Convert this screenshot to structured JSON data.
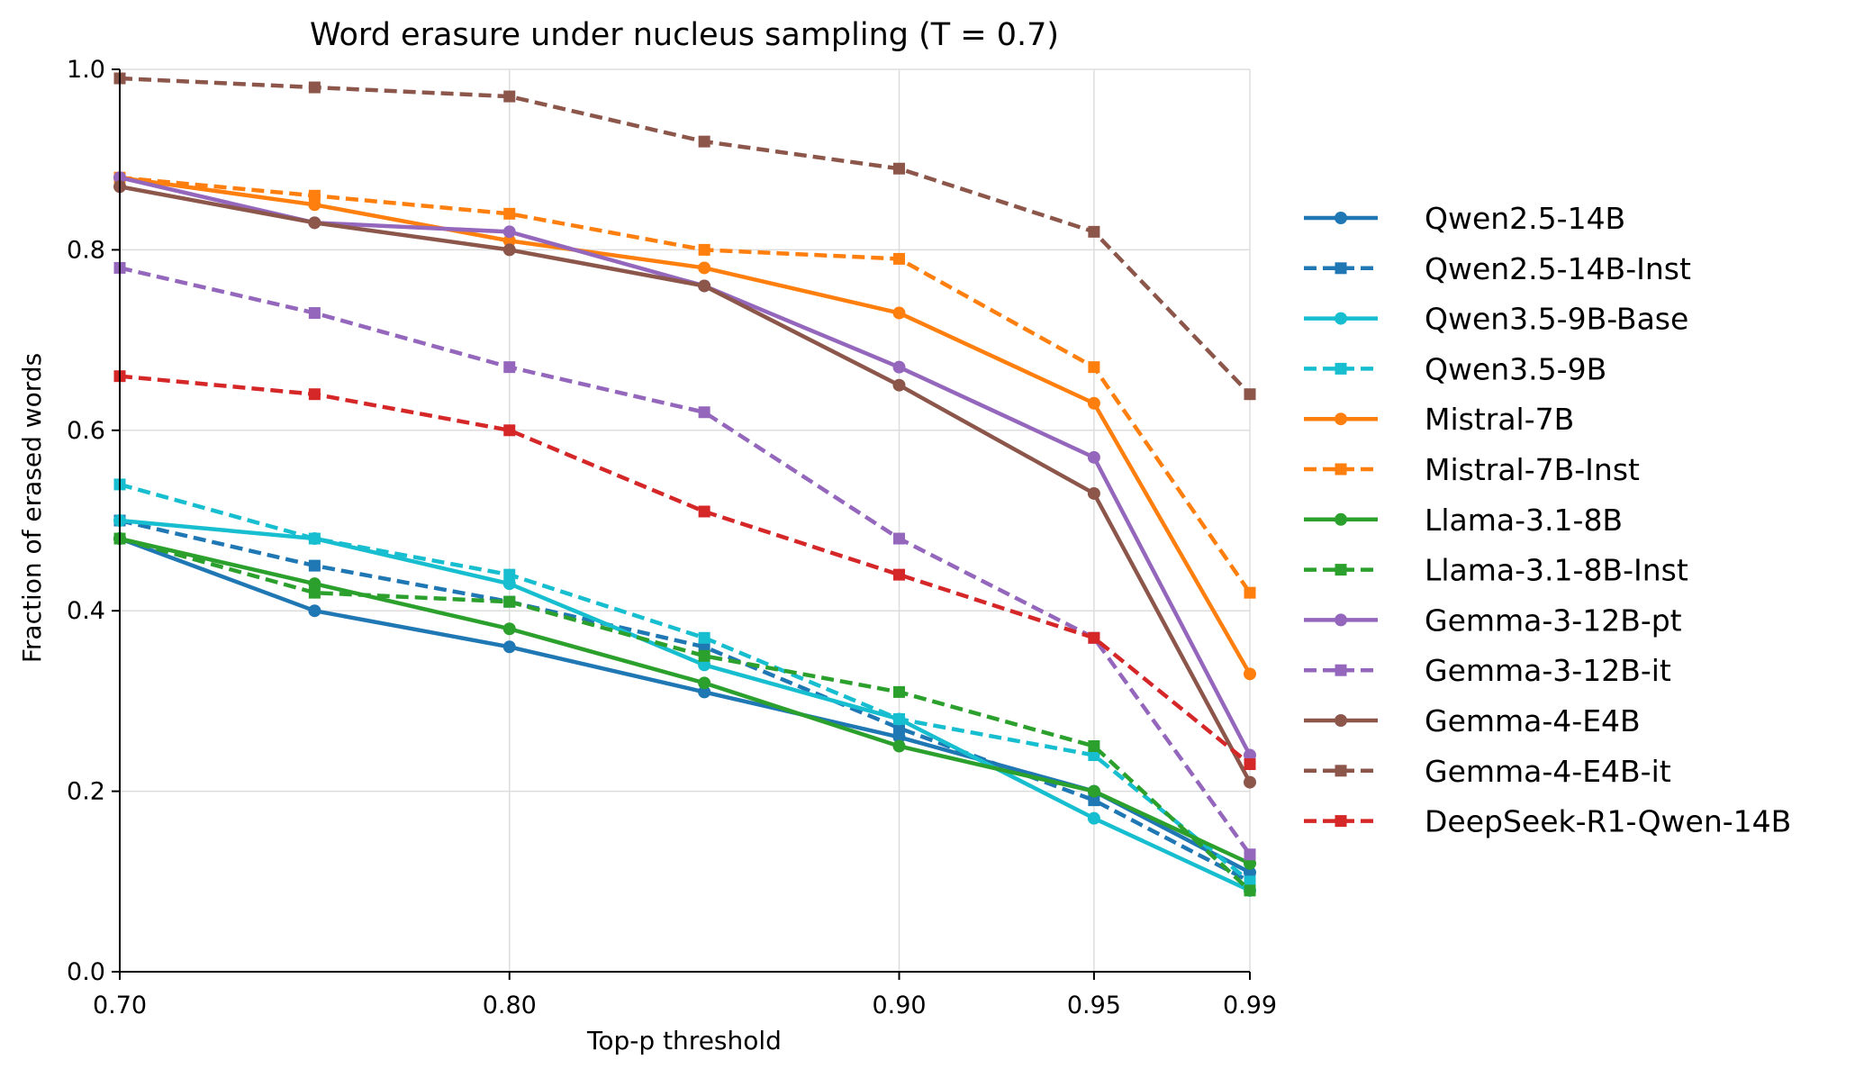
{
  "chart_data": {
    "type": "line",
    "title": "Word erasure under nucleus sampling (T = 0.7)",
    "xlabel": "Top-p threshold",
    "ylabel": "Fraction of erased words",
    "xlim": [
      0.7,
      0.99
    ],
    "ylim": [
      0.0,
      1.0
    ],
    "xticks": [
      "0.70",
      "0.80",
      "0.90",
      "0.95",
      "0.99"
    ],
    "xtick_values": [
      0.7,
      0.8,
      0.9,
      0.95,
      0.99
    ],
    "yticks": [
      "0.0",
      "0.2",
      "0.4",
      "0.6",
      "0.8",
      "1.0"
    ],
    "ytick_values": [
      0.0,
      0.2,
      0.4,
      0.6,
      0.8,
      1.0
    ],
    "grid": true,
    "legend_position": "right",
    "x": [
      0.7,
      0.75,
      0.8,
      0.85,
      0.9,
      0.95,
      0.99
    ],
    "series": [
      {
        "name": "Qwen2.5-14B",
        "color": "#1f77b4",
        "dashed": false,
        "marker": "circle",
        "values": [
          0.48,
          0.4,
          0.36,
          0.31,
          0.26,
          0.2,
          0.11
        ]
      },
      {
        "name": "Qwen2.5-14B-Inst",
        "color": "#1f77b4",
        "dashed": true,
        "marker": "square",
        "values": [
          0.5,
          0.45,
          0.41,
          0.36,
          0.27,
          0.19,
          0.1
        ]
      },
      {
        "name": "Qwen3.5-9B-Base",
        "color": "#17becf",
        "dashed": false,
        "marker": "circle",
        "values": [
          0.5,
          0.48,
          0.43,
          0.34,
          0.28,
          0.17,
          0.09
        ]
      },
      {
        "name": "Qwen3.5-9B",
        "color": "#17becf",
        "dashed": true,
        "marker": "square",
        "values": [
          0.54,
          0.48,
          0.44,
          0.37,
          0.28,
          0.24,
          0.1
        ]
      },
      {
        "name": "Mistral-7B",
        "color": "#ff7f0e",
        "dashed": false,
        "marker": "circle",
        "values": [
          0.88,
          0.85,
          0.81,
          0.78,
          0.73,
          0.63,
          0.33
        ]
      },
      {
        "name": "Mistral-7B-Inst",
        "color": "#ff7f0e",
        "dashed": true,
        "marker": "square",
        "values": [
          0.88,
          0.86,
          0.84,
          0.8,
          0.79,
          0.67,
          0.42
        ]
      },
      {
        "name": "Llama-3.1-8B",
        "color": "#2ca02c",
        "dashed": false,
        "marker": "circle",
        "values": [
          0.48,
          0.43,
          0.38,
          0.32,
          0.25,
          0.2,
          0.12
        ]
      },
      {
        "name": "Llama-3.1-8B-Inst",
        "color": "#2ca02c",
        "dashed": true,
        "marker": "square",
        "values": [
          0.48,
          0.42,
          0.41,
          0.35,
          0.31,
          0.25,
          0.09
        ]
      },
      {
        "name": "Gemma-3-12B-pt",
        "color": "#9467bd",
        "dashed": false,
        "marker": "circle",
        "values": [
          0.88,
          0.83,
          0.82,
          0.76,
          0.67,
          0.57,
          0.24
        ]
      },
      {
        "name": "Gemma-3-12B-it",
        "color": "#9467bd",
        "dashed": true,
        "marker": "square",
        "values": [
          0.78,
          0.73,
          0.67,
          0.62,
          0.48,
          0.37,
          0.13
        ]
      },
      {
        "name": "Gemma-4-E4B",
        "color": "#8c564b",
        "dashed": false,
        "marker": "circle",
        "values": [
          0.87,
          0.83,
          0.8,
          0.76,
          0.65,
          0.53,
          0.21
        ]
      },
      {
        "name": "Gemma-4-E4B-it",
        "color": "#8c564b",
        "dashed": true,
        "marker": "square",
        "values": [
          0.99,
          0.98,
          0.97,
          0.92,
          0.89,
          0.82,
          0.64
        ]
      },
      {
        "name": "DeepSeek-R1-Qwen-14B",
        "color": "#d62728",
        "dashed": true,
        "marker": "square",
        "values": [
          0.66,
          0.64,
          0.6,
          0.51,
          0.44,
          0.37,
          0.23
        ]
      }
    ]
  }
}
